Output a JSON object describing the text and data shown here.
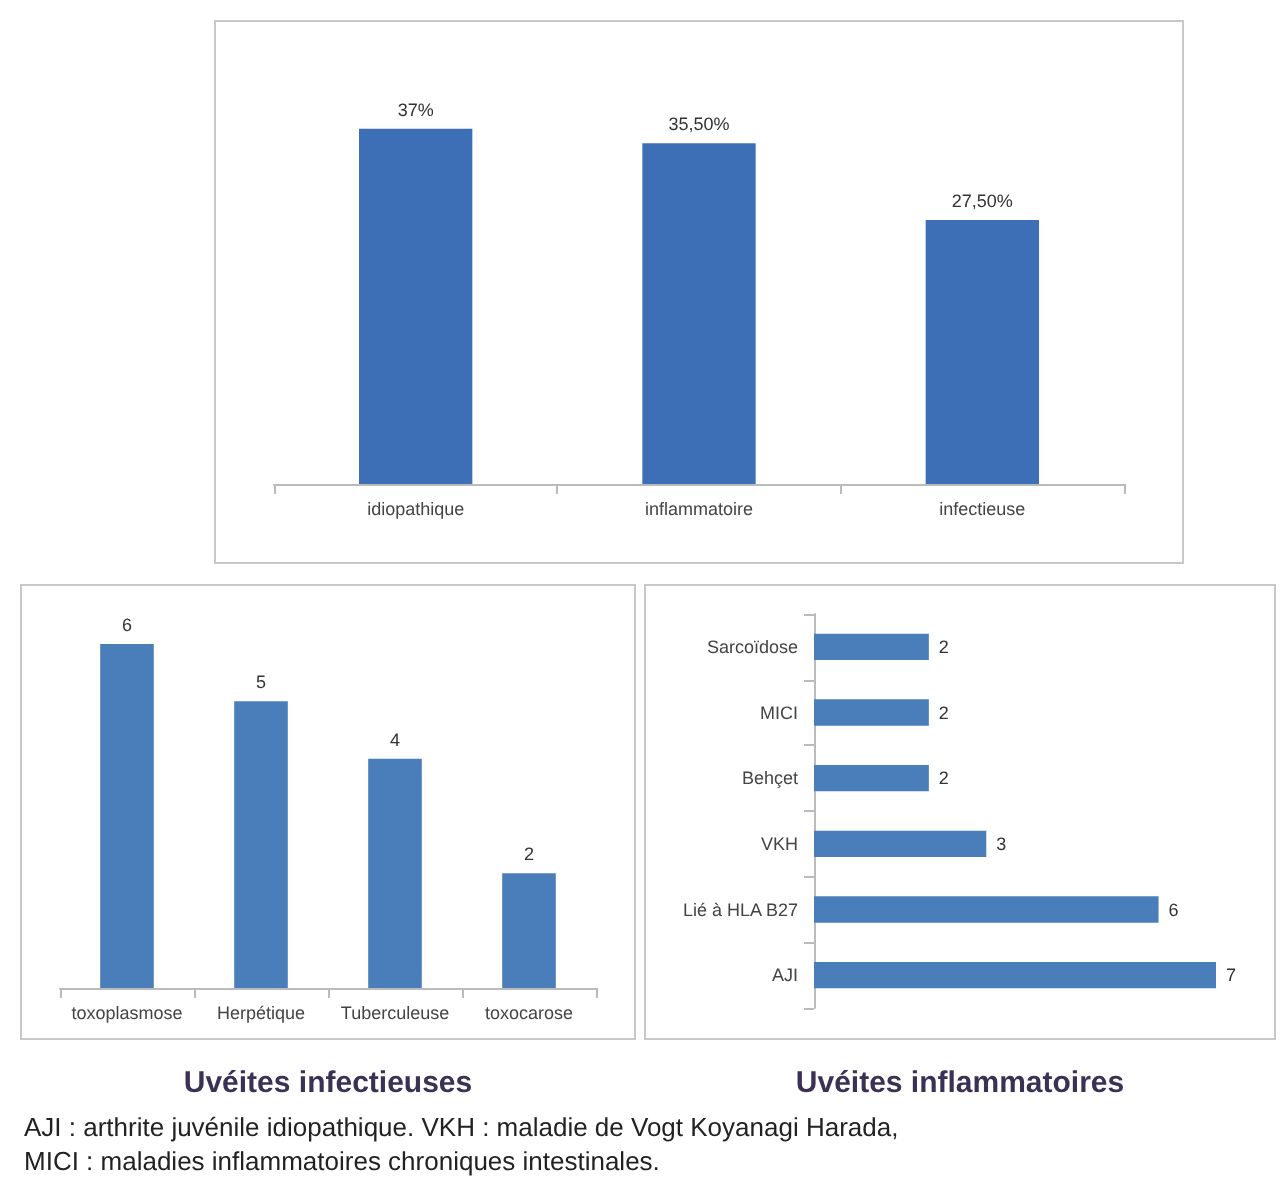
{
  "chart_data": [
    {
      "type": "bar",
      "categories": [
        "idiopathique",
        "inflammatoire",
        "infectieuse"
      ],
      "values": [
        37,
        35.5,
        27.5
      ],
      "value_labels": [
        "37%",
        "35,50%",
        "27,50%"
      ],
      "color": "#3c6fb6"
    },
    {
      "type": "bar",
      "title": "Uvéites infectieuses",
      "categories": [
        "toxoplasmose",
        "Herpétique",
        "Tuberculeuse",
        "toxocarose"
      ],
      "values": [
        6,
        5,
        4,
        2
      ],
      "data_labels": true,
      "color": "#4a7ebb"
    },
    {
      "type": "bar",
      "orientation": "horizontal",
      "title": "Uvéites inflammatoires",
      "categories": [
        "Sarcoïdose",
        "MICI",
        "Behçet",
        "VKH",
        "Lié à HLA B27",
        "AJI"
      ],
      "values": [
        2,
        2,
        2,
        3,
        6,
        7
      ],
      "data_labels": true,
      "color": "#4a7ebb",
      "annotations": [
        "AJI : arthrite juvénile idiopathique.  VKH : maladie de Vogt Koyanagi Harada,",
        "MICI : maladies inflammatoires chroniques intestinales."
      ]
    }
  ]
}
